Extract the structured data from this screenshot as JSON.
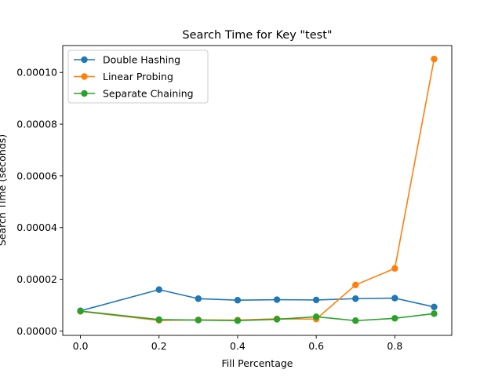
{
  "chart_data": {
    "type": "line",
    "title": "Search Time for Key \"test\"",
    "xlabel": "Fill Percentage",
    "ylabel": "Search Time (seconds)",
    "xlim": [
      -0.045,
      0.945
    ],
    "ylim": [
      -1.7e-06,
      0.0001104
    ],
    "xticks": [
      0.0,
      0.2,
      0.4,
      0.6,
      0.8
    ],
    "xtick_labels": [
      "0.0",
      "0.2",
      "0.4",
      "0.6",
      "0.8"
    ],
    "yticks": [
      0,
      2e-05,
      4e-05,
      6e-05,
      8e-05,
      0.0001
    ],
    "ytick_labels": [
      "0.00000",
      "0.00002",
      "0.00004",
      "0.00006",
      "0.00008",
      "0.00010"
    ],
    "grid": false,
    "legend_position": "top-left",
    "x": [
      0.0,
      0.2,
      0.3,
      0.4,
      0.5,
      0.6,
      0.7,
      0.8,
      0.9
    ],
    "series": [
      {
        "name": "Double Hashing",
        "color": "#1f77b4",
        "values": [
          7.8e-06,
          1.6e-05,
          1.25e-05,
          1.19e-05,
          1.21e-05,
          1.2e-05,
          1.25e-05,
          1.27e-05,
          9.3e-06
        ]
      },
      {
        "name": "Linear Probing",
        "color": "#ff7f0e",
        "values": [
          7.6e-06,
          4.1e-06,
          4.3e-06,
          4.2e-06,
          4.7e-06,
          4.6e-06,
          1.78e-05,
          2.42e-05,
          0.0001052
        ]
      },
      {
        "name": "Separate Chaining",
        "color": "#2ca02c",
        "values": [
          7.7e-06,
          4.4e-06,
          4.2e-06,
          4e-06,
          4.5e-06,
          5.5e-06,
          4e-06,
          4.9e-06,
          6.7e-06
        ]
      }
    ]
  }
}
